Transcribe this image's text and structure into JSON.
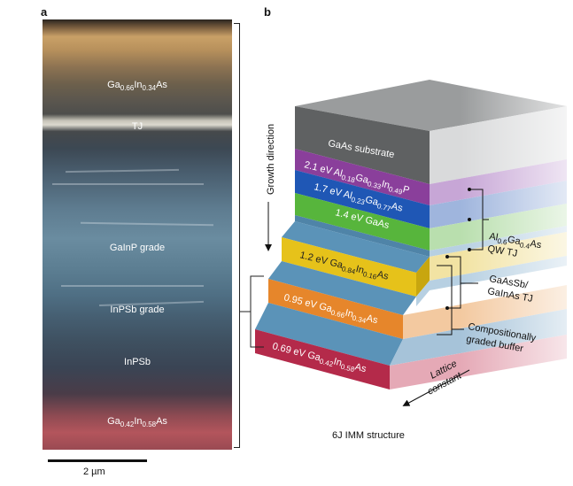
{
  "panel_a": {
    "letter": "a",
    "layers": [
      {
        "base": [
          "Ga",
          "In",
          "As"
        ],
        "subs": [
          "0.66",
          "0.34"
        ]
      },
      {
        "text": "TJ"
      },
      {
        "text": "GaInP grade"
      },
      {
        "text": "InPSb grade"
      },
      {
        "text": "InPSb"
      },
      {
        "base": [
          "Ga",
          "In",
          "As"
        ],
        "subs": [
          "0.42",
          "0.58"
        ]
      }
    ],
    "scale_label": "2 µm"
  },
  "panel_b": {
    "letter": "b",
    "growth_direction": "Growth direction",
    "substrate": "GaAs substrate",
    "layers": [
      {
        "prefix": "2.1 eV Al",
        "s1": "0.18",
        "m1": "Ga",
        "s2": "0.33",
        "m2": "In",
        "s3": "0.49",
        "suffix": "P"
      },
      {
        "prefix": "1.7 eV Al",
        "s1": "0.23",
        "m1": "Ga",
        "s2": "0.77",
        "suffix": "As"
      },
      {
        "text": "1.4 eV GaAs"
      },
      {
        "prefix": "1.2 eV Ga",
        "s1": "0.84",
        "m1": "In",
        "s2": "0.16",
        "suffix": "As"
      },
      {
        "prefix": "0.95 eV Ga",
        "s1": "0.66",
        "m1": "In",
        "s2": "0.34",
        "suffix": "As"
      },
      {
        "prefix": "0.69 eV Ga",
        "s1": "0.42",
        "m1": "In",
        "s2": "0.58",
        "suffix": "As"
      }
    ],
    "annotations": {
      "qw_tj": {
        "prefix": "Al",
        "s1": "0.6",
        "m1": "Ga",
        "s2": "0.4",
        "suffix": "As",
        "line2": "QW TJ"
      },
      "sb_tj": {
        "line1": "GaAsSb/",
        "line2": "GaInAs TJ"
      },
      "graded": {
        "line1": "Compositionally",
        "line2": "graded buffer"
      }
    },
    "lattice_1": "Lattice",
    "lattice_2": "constant",
    "caption": "6J IMM structure"
  },
  "colors": {
    "substrate_top": "#808283",
    "substrate_front": "#5c5e5f",
    "layer_2_1": "#8a3f9b",
    "layer_1_7": "#1f57b5",
    "layer_1_4": "#57b53c",
    "layer_1_2": "#e6c21a",
    "layer_0_95": "#e6862b",
    "layer_0_69": "#b42a4a",
    "spacer_blue": "#5b93b8"
  }
}
